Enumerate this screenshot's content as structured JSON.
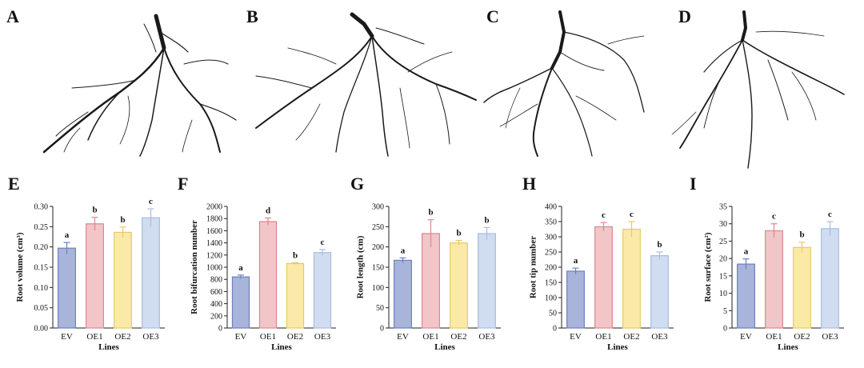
{
  "panels_top": [
    {
      "letter": "A"
    },
    {
      "letter": "B"
    },
    {
      "letter": "C"
    },
    {
      "letter": "D"
    }
  ],
  "chart_data": [
    {
      "letter": "E",
      "type": "bar",
      "categories": [
        "EV",
        "OE1",
        "OE2",
        "OE3"
      ],
      "values": [
        0.197,
        0.257,
        0.236,
        0.272
      ],
      "errors": [
        0.014,
        0.016,
        0.013,
        0.022
      ],
      "sig": [
        "a",
        "b",
        "b",
        "c"
      ],
      "ylabel": "Root volume (cm³)",
      "xlabel": "Lines",
      "ylim": [
        0,
        0.3
      ],
      "ticks": [
        "0.00",
        "0.05",
        "0.10",
        "0.15",
        "0.20",
        "0.25",
        "0.30"
      ]
    },
    {
      "letter": "F",
      "type": "bar",
      "categories": [
        "EV",
        "OE1",
        "OE2",
        "OE3"
      ],
      "values": [
        840,
        1750,
        1060,
        1240
      ],
      "errors": [
        30,
        60,
        15,
        50
      ],
      "sig": [
        "a",
        "d",
        "b",
        "c"
      ],
      "ylabel": "Root bifurcation number",
      "xlabel": "Lines",
      "ylim": [
        0,
        2000
      ],
      "ticks": [
        "0",
        "200",
        "400",
        "600",
        "800",
        "1000",
        "1200",
        "1400",
        "1600",
        "1800",
        "2000"
      ]
    },
    {
      "letter": "G",
      "type": "bar",
      "categories": [
        "EV",
        "OE1",
        "OE2",
        "OE3"
      ],
      "values": [
        167,
        233,
        210,
        233
      ],
      "errors": [
        6,
        34,
        6,
        15
      ],
      "sig": [
        "a",
        "b",
        "b",
        "b"
      ],
      "ylabel": "Root length (cm)",
      "xlabel": "Lines",
      "ylim": [
        0,
        300
      ],
      "ticks": [
        "0",
        "50",
        "100",
        "150",
        "200",
        "250",
        "300"
      ]
    },
    {
      "letter": "H",
      "type": "bar",
      "categories": [
        "EV",
        "OE1",
        "OE2",
        "OE3"
      ],
      "values": [
        187,
        333,
        325,
        238
      ],
      "errors": [
        10,
        14,
        25,
        12
      ],
      "sig": [
        "a",
        "c",
        "c",
        "b"
      ],
      "ylabel": "Root tip number",
      "xlabel": "Lines",
      "ylim": [
        0,
        400
      ],
      "ticks": [
        "0",
        "50",
        "100",
        "150",
        "200",
        "250",
        "300",
        "350",
        "400"
      ]
    },
    {
      "letter": "I",
      "type": "bar",
      "categories": [
        "EV",
        "OE1",
        "OE2",
        "OE3"
      ],
      "values": [
        18.4,
        28.0,
        23.2,
        28.6
      ],
      "errors": [
        1.5,
        2.0,
        1.5,
        2.0
      ],
      "sig": [
        "a",
        "c",
        "b",
        "c"
      ],
      "ylabel": "Root surface (cm²)",
      "xlabel": "Lines",
      "ylim": [
        0,
        35
      ],
      "ticks": [
        "0",
        "5",
        "10",
        "15",
        "20",
        "25",
        "30",
        "35"
      ]
    }
  ],
  "colors": {
    "fills": [
      "#a9b4da",
      "#f2c6c8",
      "#fbe9a8",
      "#d0dcf0"
    ],
    "strokes": [
      "#6d7fc0",
      "#d9898e",
      "#e6cb66",
      "#a9bde0"
    ]
  }
}
